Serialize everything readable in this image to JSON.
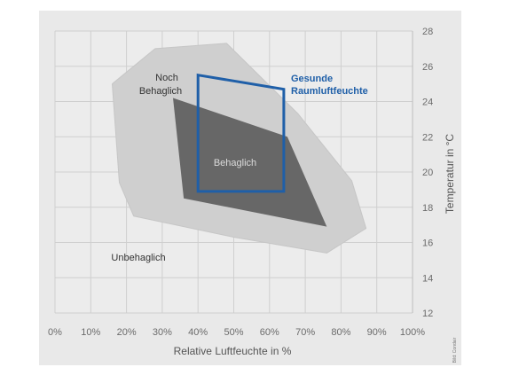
{
  "chart_data": {
    "type": "area",
    "xlabel": "Relative Luftfeuchte in %",
    "ylabel": "Temperatur in °C",
    "xlim": [
      0,
      100
    ],
    "ylim": [
      12,
      28
    ],
    "x_ticks": [
      "0%",
      "10%",
      "20%",
      "30%",
      "40%",
      "50%",
      "60%",
      "70%",
      "80%",
      "90%",
      "100%"
    ],
    "y_ticks": [
      "12",
      "14",
      "16",
      "18",
      "20",
      "22",
      "24",
      "26",
      "28"
    ],
    "grid": true,
    "regions": [
      {
        "name": "Noch Behaglich",
        "label_lines": [
          "Noch",
          "Behaglich"
        ],
        "color": "#cfcfcf",
        "points": [
          [
            16,
            25
          ],
          [
            28,
            27
          ],
          [
            48,
            27.3
          ],
          [
            68,
            23.3
          ],
          [
            83,
            19.5
          ],
          [
            87,
            16.8
          ],
          [
            76,
            15.4
          ],
          [
            50,
            16.3
          ],
          [
            22,
            17.5
          ],
          [
            18,
            19.4
          ]
        ]
      },
      {
        "name": "Behaglich",
        "label_lines": [
          "Behaglich"
        ],
        "color": "#5e5e5e",
        "points": [
          [
            33,
            24.2
          ],
          [
            65,
            22.0
          ],
          [
            76,
            16.9
          ],
          [
            36,
            18.5
          ]
        ]
      },
      {
        "name": "Gesunde Raumluftfeuchte",
        "label_lines": [
          "Gesunde",
          "Raumluftfeuchte"
        ],
        "color": "#1f5fa8",
        "points": [
          [
            40,
            25.5
          ],
          [
            64,
            24.7
          ],
          [
            64,
            18.9
          ],
          [
            40,
            18.9
          ]
        ]
      }
    ],
    "annotations": [
      {
        "text": "Unbehaglich"
      }
    ],
    "credit": "Bild: Condair"
  }
}
